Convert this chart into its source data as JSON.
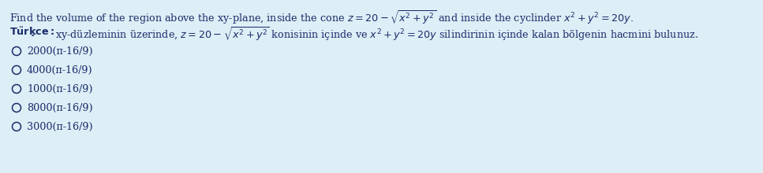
{
  "background_color": "#ddeef6",
  "text_color": "#1a2b6b",
  "font_size": 9.2,
  "line1": "Find the volume of the region above the xy-plane, inside the cone $z = 20 - \\sqrt{x^2 + y^2}$ and inside the cyclinder $x^2 + y^2 = 20y.$",
  "line2_bold": "$\\mathbf{T\\ddot{u}rkc\\!e:}$",
  "line2_rest": "xy-düzleminin üzerinde, $z = 20 - \\sqrt{x^2 + y^2}$ konisinin içinde ve $x^2 + y^2 = 20y$ silindirinin içinde kalan bölgenin hacmini bulunuz.",
  "options": [
    "2000(π-16/9)",
    "4000(π-16/9)",
    "1000(π-16/9)",
    "8000(π-16/9)",
    "3000(π-16/9)"
  ]
}
